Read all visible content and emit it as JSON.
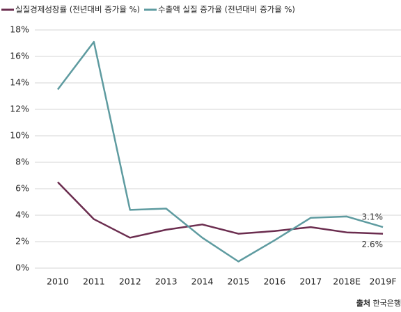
{
  "chart_data": {
    "type": "line",
    "categories": [
      "2010",
      "2011",
      "2012",
      "2013",
      "2014",
      "2015",
      "2016",
      "2017",
      "2018E",
      "2019F"
    ],
    "series": [
      {
        "name": "실질경제성장률 (전년대비 증가율 %)",
        "color": "#6b2d4f",
        "values": [
          6.5,
          3.7,
          2.3,
          2.9,
          3.3,
          2.6,
          2.8,
          3.1,
          2.7,
          2.6
        ],
        "value_labels": [
          null,
          null,
          null,
          null,
          null,
          null,
          null,
          null,
          null,
          "2.6%"
        ]
      },
      {
        "name": "수출액 실질 증가율 (전년대비 증가율 %)",
        "color": "#5e9ba0",
        "values": [
          13.5,
          17.1,
          4.4,
          4.5,
          2.3,
          0.5,
          2.1,
          3.8,
          3.9,
          3.1
        ],
        "value_labels": [
          null,
          null,
          null,
          null,
          null,
          null,
          null,
          null,
          null,
          "3.1%"
        ]
      }
    ],
    "ylim": [
      0,
      18
    ],
    "yticks": [
      {
        "value": 0,
        "label": "0%"
      },
      {
        "value": 2,
        "label": "2%"
      },
      {
        "value": 4,
        "label": "4%"
      },
      {
        "value": 6,
        "label": "6%"
      },
      {
        "value": 8,
        "label": "8%"
      },
      {
        "value": 10,
        "label": "10%"
      },
      {
        "value": 12,
        "label": "12%"
      },
      {
        "value": 14,
        "label": "14%"
      },
      {
        "value": 16,
        "label": "16%"
      },
      {
        "value": 18,
        "label": "18%"
      }
    ],
    "grid": true,
    "legend": "top",
    "source_label": "출처",
    "source": "한국은행"
  }
}
